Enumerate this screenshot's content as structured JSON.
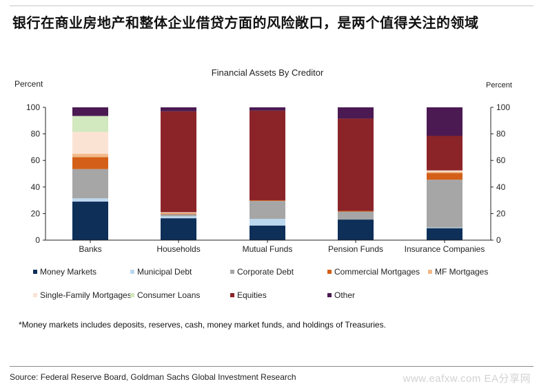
{
  "headline": "银行在商业房地产和整体企业借贷方面的风险敞口，是两个值得关注的领域",
  "chart_data": {
    "type": "bar",
    "stacked": true,
    "title": "Financial Assets By Creditor",
    "ylabel_left": "Percent",
    "ylabel_right": "Percent",
    "ylim": [
      0,
      100
    ],
    "yticks": [
      0,
      20,
      40,
      60,
      80,
      100
    ],
    "categories": [
      "Banks",
      "Households",
      "Mutual Funds",
      "Pension Funds",
      "Insurance Companies"
    ],
    "series": [
      {
        "name": "Money Markets",
        "color": "#0d2f58",
        "values": [
          29,
          16.5,
          11,
          15.5,
          9
        ]
      },
      {
        "name": "Municipal Debt",
        "color": "#bcd8ee",
        "values": [
          2.5,
          1.5,
          5,
          0,
          0.5
        ]
      },
      {
        "name": "Corporate Debt",
        "color": "#a6a6a6",
        "values": [
          22,
          1.5,
          13.5,
          6,
          36
        ]
      },
      {
        "name": "Commercial Mortgages",
        "color": "#d35f18",
        "values": [
          9,
          0.5,
          0.5,
          0.5,
          5
        ]
      },
      {
        "name": "MF Mortgages",
        "color": "#f2b989",
        "values": [
          2.5,
          0.5,
          0,
          0,
          1
        ]
      },
      {
        "name": "Single-Family Mortgages",
        "color": "#fbe3d4",
        "values": [
          16.5,
          0.5,
          0,
          0,
          1
        ]
      },
      {
        "name": "Consumer Loans",
        "color": "#d2e8be",
        "values": [
          12,
          0,
          0,
          0,
          0
        ]
      },
      {
        "name": "Equities",
        "color": "#8b2428",
        "values": [
          0,
          76,
          67.5,
          69.5,
          26
        ]
      },
      {
        "name": "Other",
        "color": "#4b1a52",
        "values": [
          6.5,
          3,
          2.5,
          8.5,
          21.5
        ]
      }
    ],
    "legend_position": "bottom",
    "grid": false
  },
  "footnote": "*Money markets includes deposits, reserves, cash, money market funds, and holdings of Treasuries.",
  "source": "Source: Federal Reserve Board, Goldman Sachs Global Investment Research",
  "watermark": "www.eafxw.com   EA分享网"
}
